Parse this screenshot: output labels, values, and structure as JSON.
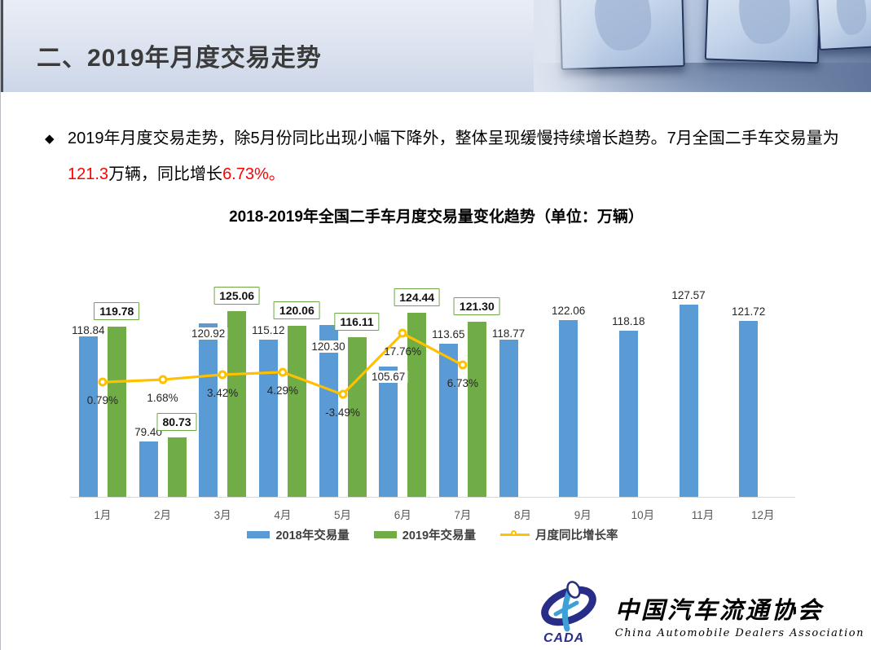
{
  "slide": {
    "title": "二、2019年月度交易走势"
  },
  "bullet": {
    "marker": "◆",
    "parts": [
      {
        "t": "2019年月度交易走势，除5月份同比出现小幅下降外，整体呈现缓慢持续增长趋势。7月全国二手车交易量为",
        "red": false
      },
      {
        "t": "121.3",
        "red": true
      },
      {
        "t": "万辆，同比增长",
        "red": false
      },
      {
        "t": "6.73%。",
        "red": true
      }
    ]
  },
  "chart_data": {
    "type": "bar",
    "title": "2018-2019年全国二手车月度交易量变化趋势（单位：万辆）",
    "categories": [
      "1月",
      "2月",
      "3月",
      "4月",
      "5月",
      "6月",
      "7月",
      "8月",
      "9月",
      "10月",
      "11月",
      "12月"
    ],
    "series": [
      {
        "name": "2018年交易量",
        "type": "bar",
        "color": "#5B9BD5",
        "values": [
          118.84,
          79.4,
          120.92,
          115.12,
          120.3,
          105.67,
          113.65,
          118.77,
          122.06,
          118.18,
          127.57,
          121.72
        ]
      },
      {
        "name": "2019年交易量",
        "type": "bar",
        "color": "#70AD47",
        "values": [
          119.78,
          80.73,
          125.06,
          120.06,
          116.11,
          124.44,
          121.3,
          null,
          null,
          null,
          null,
          null
        ]
      },
      {
        "name": "月度同比增长率",
        "type": "line",
        "color": "#FFC000",
        "values": [
          0.79,
          1.68,
          3.42,
          4.29,
          -3.49,
          17.76,
          6.73,
          null,
          null,
          null,
          null,
          null
        ],
        "labels": [
          "0.79%",
          "1.68%",
          "3.42%",
          "4.29%",
          "-3.49%",
          "17.76%",
          "6.73%"
        ]
      }
    ],
    "unit": "万辆",
    "value_axis": {
      "hidden": true,
      "min": 60
    },
    "secondary_axis": {
      "hidden": true,
      "unit": "%"
    },
    "legend_position": "bottom",
    "gridlines": false
  },
  "logo": {
    "abbr": "CADA",
    "name_cn": "中国汽车流通协会",
    "name_en": "China Automobile Dealers Association"
  },
  "colors": {
    "bar2018": "#5B9BD5",
    "bar2019": "#70AD47",
    "growth_line": "#FFC000",
    "highlight": "#FF0000"
  }
}
